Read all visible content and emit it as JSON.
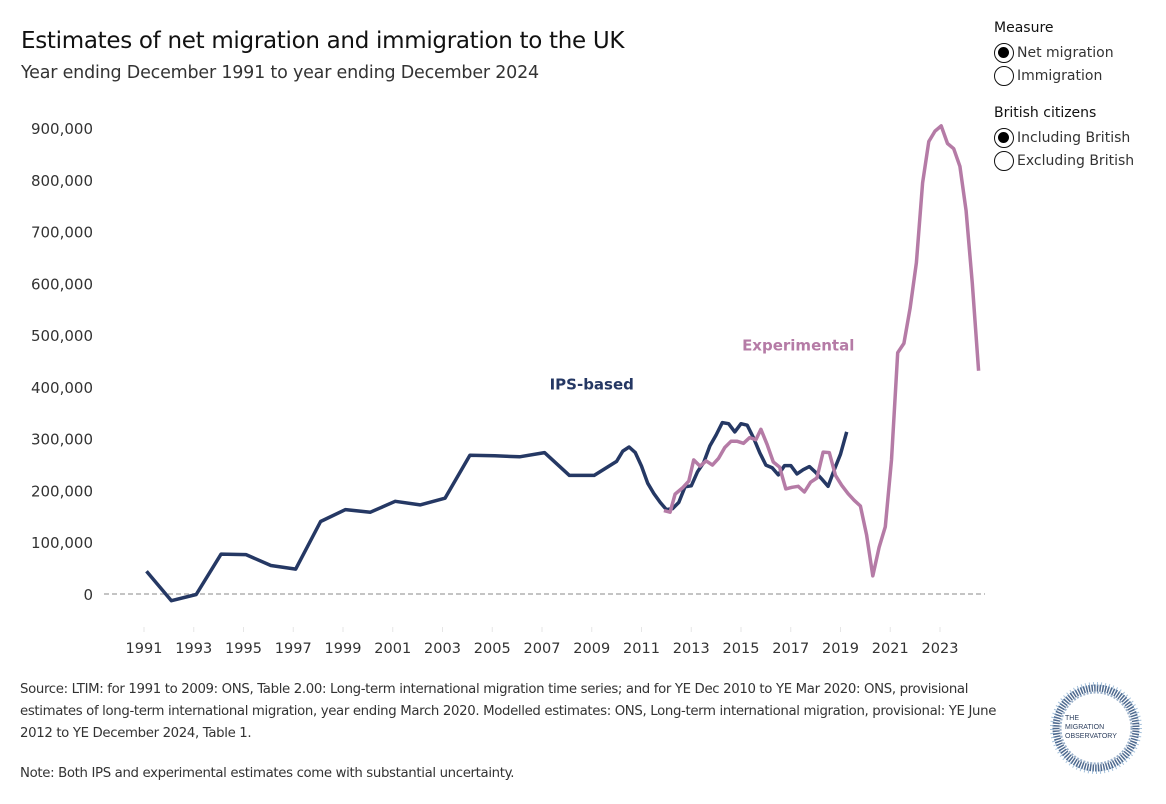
{
  "header": {
    "title": "Estimates of net migration and immigration to the UK",
    "subtitle": "Year ending December 1991 to year ending December 2024"
  },
  "filters": [
    {
      "title": "Measure",
      "options": [
        {
          "label": "Net migration",
          "checked": true
        },
        {
          "label": "Immigration",
          "checked": false
        }
      ]
    },
    {
      "title": "British citizens",
      "options": [
        {
          "label": "Including British",
          "checked": true
        },
        {
          "label": "Excluding British",
          "checked": false
        }
      ]
    }
  ],
  "footer": {
    "source": "Source: LTIM: for 1991 to 2009: ONS, Table 2.00: Long-term international migration time series; and for YE Dec 2010 to YE Mar 2020: ONS, provisional estimates of long-term international migration, year ending March 2020. Modelled estimates: ONS, Long-term international migration, provisional: YE June 2012 to YE December 2024, Table 1.",
    "note": "Note: Both IPS and experimental estimates come with substantial uncertainty.",
    "logo_text": [
      "THE",
      "MIGRATION",
      "OBSERVATORY"
    ]
  },
  "colors": {
    "ips": "#253864",
    "experimental": "#b57ba6",
    "zero_line": "#b0b0b0",
    "axis_text": "#333333"
  },
  "chart_data": {
    "type": "line",
    "title": "Estimates of net migration and immigration to the UK",
    "subtitle": "Year ending December 1991 to year ending December 2024",
    "xlabel": "",
    "ylabel": "",
    "xlim": [
      1990.3,
      2024.5
    ],
    "ylim": [
      -60000,
      950000
    ],
    "yticks": [
      0,
      100000,
      200000,
      300000,
      400000,
      500000,
      600000,
      700000,
      800000,
      900000
    ],
    "ytick_labels": [
      "0",
      "100,000",
      "200,000",
      "300,000",
      "400,000",
      "500,000",
      "600,000",
      "700,000",
      "800,000",
      "900,000"
    ],
    "xticks": [
      1991,
      1993,
      1995,
      1997,
      1999,
      2001,
      2003,
      2005,
      2007,
      2009,
      2011,
      2013,
      2015,
      2017,
      2019,
      2021,
      2023
    ],
    "xtick_labels": [
      "1991",
      "1993",
      "1995",
      "1997",
      "1999",
      "2001",
      "2003",
      "2005",
      "2007",
      "2009",
      "2011",
      "2013",
      "2015",
      "2017",
      "2019",
      "2021",
      "2023"
    ],
    "grid": false,
    "zero_line": "dashed",
    "legend": "none",
    "series": [
      {
        "name": "IPS-based",
        "label": "IPS-based",
        "label_at": [
          2009.0,
          395000
        ],
        "points": [
          [
            1991.1,
            44000
          ],
          [
            1992.1,
            -13000
          ],
          [
            1993.1,
            -1000
          ],
          [
            1994.1,
            77000
          ],
          [
            1995.1,
            76000
          ],
          [
            1996.1,
            55000
          ],
          [
            1997.1,
            48000
          ],
          [
            1998.1,
            140000
          ],
          [
            1999.1,
            163000
          ],
          [
            2000.1,
            158000
          ],
          [
            2001.1,
            179000
          ],
          [
            2002.1,
            172000
          ],
          [
            2003.1,
            185000
          ],
          [
            2004.1,
            268000
          ],
          [
            2005.1,
            267000
          ],
          [
            2006.1,
            265000
          ],
          [
            2007.1,
            273000
          ],
          [
            2008.1,
            229000
          ],
          [
            2009.1,
            229000
          ],
          [
            2010.0,
            256000
          ],
          [
            2010.25,
            276000
          ],
          [
            2010.5,
            284000
          ],
          [
            2010.75,
            273000
          ],
          [
            2011.0,
            247000
          ],
          [
            2011.25,
            214000
          ],
          [
            2011.5,
            194000
          ],
          [
            2011.75,
            177000
          ],
          [
            2012.0,
            163000
          ],
          [
            2012.25,
            165000
          ],
          [
            2012.5,
            177000
          ],
          [
            2012.75,
            207000
          ],
          [
            2013.0,
            209000
          ],
          [
            2013.25,
            236000
          ],
          [
            2013.5,
            254000
          ],
          [
            2013.75,
            286000
          ],
          [
            2014.0,
            307000
          ],
          [
            2014.25,
            331000
          ],
          [
            2014.5,
            329000
          ],
          [
            2014.75,
            313000
          ],
          [
            2015.0,
            329000
          ],
          [
            2015.25,
            326000
          ],
          [
            2015.5,
            302000
          ],
          [
            2015.75,
            273000
          ],
          [
            2016.0,
            249000
          ],
          [
            2016.25,
            244000
          ],
          [
            2016.5,
            230000
          ],
          [
            2016.75,
            248000
          ],
          [
            2017.0,
            248000
          ],
          [
            2017.25,
            232000
          ],
          [
            2017.5,
            240000
          ],
          [
            2017.75,
            246000
          ],
          [
            2018.0,
            235000
          ],
          [
            2018.25,
            222000
          ],
          [
            2018.5,
            208000
          ],
          [
            2018.75,
            240000
          ],
          [
            2019.0,
            270000
          ],
          [
            2019.25,
            313000
          ]
        ]
      },
      {
        "name": "Experimental",
        "label": "Experimental",
        "label_at": [
          2017.3,
          470000
        ],
        "points": [
          [
            2011.9,
            161000
          ],
          [
            2012.15,
            158000
          ],
          [
            2012.35,
            193000
          ],
          [
            2012.65,
            205000
          ],
          [
            2012.9,
            218000
          ],
          [
            2013.1,
            259000
          ],
          [
            2013.35,
            247000
          ],
          [
            2013.6,
            257000
          ],
          [
            2013.85,
            249000
          ],
          [
            2014.1,
            262000
          ],
          [
            2014.35,
            283000
          ],
          [
            2014.6,
            295000
          ],
          [
            2014.85,
            295000
          ],
          [
            2015.1,
            291000
          ],
          [
            2015.35,
            302000
          ],
          [
            2015.6,
            298000
          ],
          [
            2015.8,
            318000
          ],
          [
            2016.05,
            289000
          ],
          [
            2016.3,
            255000
          ],
          [
            2016.55,
            245000
          ],
          [
            2016.8,
            203000
          ],
          [
            2017.05,
            206000
          ],
          [
            2017.3,
            208000
          ],
          [
            2017.55,
            197000
          ],
          [
            2017.8,
            216000
          ],
          [
            2018.05,
            224000
          ],
          [
            2018.3,
            274000
          ],
          [
            2018.55,
            273000
          ],
          [
            2018.8,
            229000
          ],
          [
            2019.05,
            210000
          ],
          [
            2019.3,
            194000
          ],
          [
            2019.55,
            181000
          ],
          [
            2019.8,
            170000
          ],
          [
            2020.05,
            114000
          ],
          [
            2020.3,
            35000
          ],
          [
            2020.55,
            90000
          ],
          [
            2020.8,
            130000
          ],
          [
            2021.05,
            259000
          ],
          [
            2021.3,
            466000
          ],
          [
            2021.55,
            484000
          ],
          [
            2021.8,
            552000
          ],
          [
            2022.05,
            640000
          ],
          [
            2022.3,
            794000
          ],
          [
            2022.55,
            874000
          ],
          [
            2022.8,
            894000
          ],
          [
            2023.05,
            904000
          ],
          [
            2023.3,
            870000
          ],
          [
            2023.55,
            860000
          ],
          [
            2023.8,
            826000
          ],
          [
            2024.05,
            740000
          ],
          [
            2024.3,
            600000
          ],
          [
            2024.55,
            431000
          ]
        ]
      }
    ]
  }
}
